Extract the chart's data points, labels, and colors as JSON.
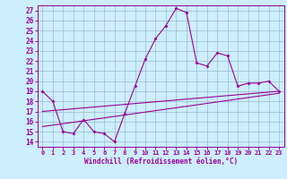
{
  "title": "",
  "xlabel": "Windchill (Refroidissement éolien,°C)",
  "ylabel": "",
  "xlim": [
    -0.5,
    23.5
  ],
  "ylim": [
    13.5,
    27.5
  ],
  "yticks": [
    14,
    15,
    16,
    17,
    18,
    19,
    20,
    21,
    22,
    23,
    24,
    25,
    26,
    27
  ],
  "xticks": [
    0,
    1,
    2,
    3,
    4,
    5,
    6,
    7,
    8,
    9,
    10,
    11,
    12,
    13,
    14,
    15,
    16,
    17,
    18,
    19,
    20,
    21,
    22,
    23
  ],
  "line_color": "#990099",
  "bg_color": "#cceeff",
  "grid_color": "#99bbcc",
  "series1_x": [
    0,
    1,
    2,
    3,
    4,
    5,
    6,
    7,
    8,
    9,
    10,
    11,
    12,
    13,
    14,
    15,
    16,
    17,
    18,
    19,
    20,
    21,
    22,
    23
  ],
  "series1_y": [
    19.0,
    18.0,
    15.0,
    14.8,
    16.2,
    15.0,
    14.8,
    14.0,
    16.8,
    19.5,
    22.2,
    24.2,
    25.5,
    27.2,
    26.8,
    21.8,
    21.5,
    22.8,
    22.5,
    19.5,
    19.8,
    19.8,
    20.0,
    19.0
  ],
  "series2_x": [
    0,
    23
  ],
  "series2_y": [
    15.5,
    18.8
  ],
  "series3_x": [
    0,
    23
  ],
  "series3_y": [
    17.0,
    19.0
  ]
}
